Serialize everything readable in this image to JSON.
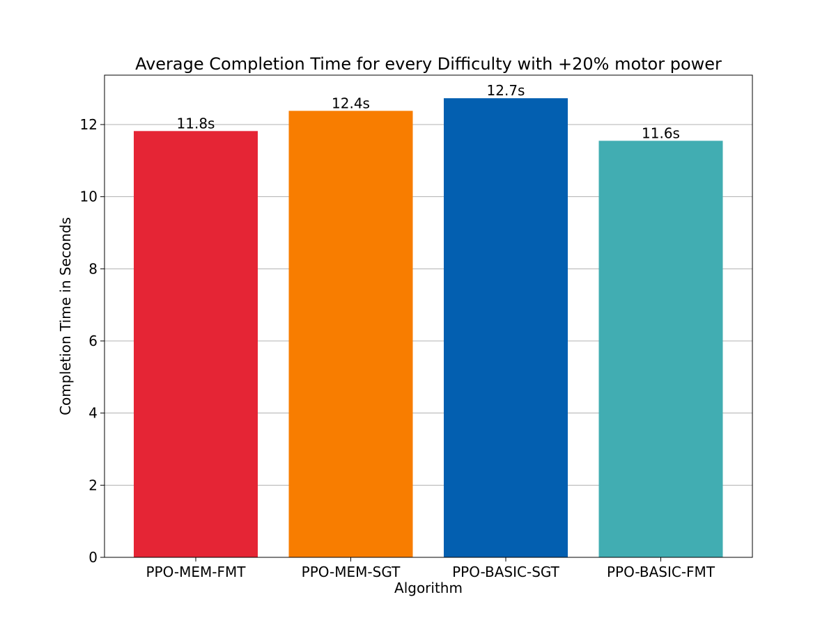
{
  "chart_data": {
    "type": "bar",
    "title": "Average Completion Time for every Difficulty with +20% motor power",
    "xlabel": "Algorithm",
    "ylabel": "Completion Time in Seconds",
    "categories": [
      "PPO-MEM-FMT",
      "PPO-MEM-SGT",
      "PPO-BASIC-SGT",
      "PPO-BASIC-FMT"
    ],
    "values": [
      11.82,
      12.38,
      12.73,
      11.55
    ],
    "data_labels": [
      "11.8s",
      "12.4s",
      "12.7s",
      "11.6s"
    ],
    "colors": [
      "#e52535",
      "#f87d00",
      "#035fb0",
      "#41adb2"
    ],
    "ylim": [
      0,
      13.37
    ],
    "yticks": [
      0,
      2,
      4,
      6,
      8,
      10,
      12
    ],
    "grid": "y",
    "legend": "none"
  }
}
